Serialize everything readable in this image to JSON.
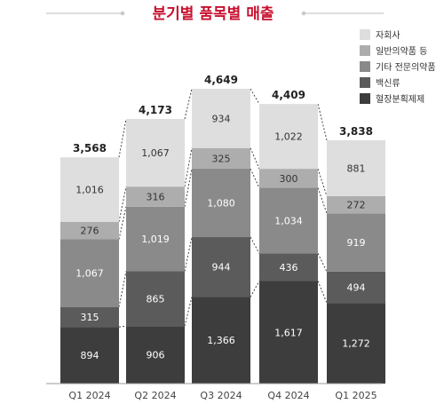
{
  "chart_data": {
    "type": "bar",
    "stacked": true,
    "title": "분기별 품목별 매출",
    "categories": [
      "Q1 2024",
      "Q2 2024",
      "Q3 2024",
      "Q4 2024",
      "Q1 2025"
    ],
    "totals": [
      3568,
      4173,
      4649,
      4409,
      3838
    ],
    "total_labels": [
      "3,568",
      "4,173",
      "4,649",
      "4,409",
      "3,838"
    ],
    "series": [
      {
        "name": "혈장분획제제",
        "color": "#3d3d3d",
        "values": [
          894,
          906,
          1366,
          1617,
          1272
        ],
        "labels": [
          "894",
          "906",
          "1,366",
          "1,617",
          "1,272"
        ]
      },
      {
        "name": "백신류",
        "color": "#5b5b5b",
        "values": [
          315,
          865,
          944,
          436,
          494
        ],
        "labels": [
          "315",
          "865",
          "944",
          "436",
          "494"
        ]
      },
      {
        "name": "기타 전문의약품",
        "color": "#8a8a8a",
        "values": [
          1067,
          1019,
          1080,
          1034,
          919
        ],
        "labels": [
          "1,067",
          "1,019",
          "1,080",
          "1,034",
          "919"
        ]
      },
      {
        "name": "일반의약품 등",
        "color": "#adadad",
        "values": [
          276,
          316,
          325,
          300,
          272
        ],
        "labels": [
          "276",
          "316",
          "325",
          "300",
          "272"
        ]
      },
      {
        "name": "자회사",
        "color": "#dedede",
        "values": [
          1016,
          1067,
          934,
          1022,
          881
        ],
        "labels": [
          "1,016",
          "1,067",
          "934",
          "1,022",
          "881"
        ]
      }
    ],
    "legend_order": [
      "자회사",
      "일반의약품 등",
      "기타 전문의약품",
      "백신류",
      "혈장분획제제"
    ],
    "legend_position": "top-right",
    "colors": {
      "title": "#c8102e",
      "deco_line": "#c9c9c9",
      "connector": "#444444",
      "axis": "#999999"
    }
  }
}
